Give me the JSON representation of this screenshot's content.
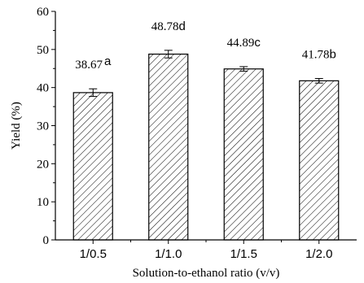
{
  "chart_data": {
    "type": "bar",
    "categories": [
      "1/0.5",
      "1/1.0",
      "1/1.5",
      "1/2.0"
    ],
    "values": [
      38.67,
      48.78,
      44.89,
      41.78
    ],
    "errors": [
      1.0,
      1.0,
      0.6,
      0.6
    ],
    "data_labels": [
      {
        "value": "38.67",
        "letter": "a"
      },
      {
        "value": "48.78",
        "letter": "d"
      },
      {
        "value": "44.89",
        "letter": "c"
      },
      {
        "value": "41.78",
        "letter": "b"
      }
    ],
    "xlabel": "Solution-to-ethanol ratio (v/v)",
    "ylabel": "Yield (%)",
    "ylim": [
      0,
      60
    ],
    "yticks": [
      0,
      10,
      20,
      30,
      40,
      50,
      60
    ],
    "bar_fill": "hatched",
    "grid": false,
    "legend": "none"
  }
}
